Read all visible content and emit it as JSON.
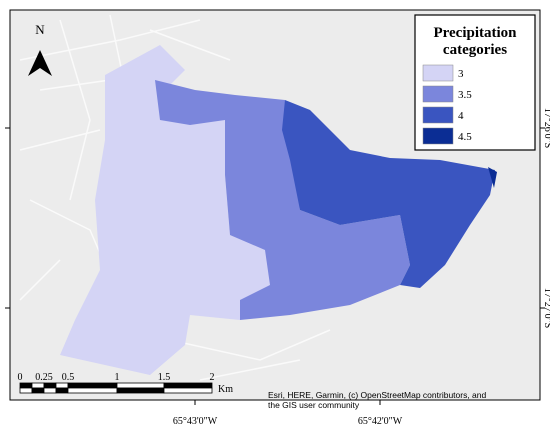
{
  "north_arrow": {
    "label": "N"
  },
  "legend": {
    "title_lines": [
      "Precipitation",
      "categories"
    ],
    "items": [
      {
        "label": "3",
        "color": "#d4d4f5"
      },
      {
        "label": "3.5",
        "color": "#7b86dc"
      },
      {
        "label": "4",
        "color": "#3a55c0"
      },
      {
        "label": "4.5",
        "color": "#0b2d94"
      }
    ]
  },
  "scale_bar": {
    "ticks": [
      "0",
      "0.25",
      "0.5",
      "1",
      "1.5",
      "2"
    ],
    "unit": "Km"
  },
  "attribution": [
    "Esri, HERE, Garmin, (c) OpenStreetMap contributors, and",
    "the GIS user community"
  ],
  "longitude_labels": [
    "65°43'0\"W",
    "65°42'0\"W"
  ],
  "latitude_labels": [
    "17°26'0\"S",
    "17°27'0\"S"
  ]
}
